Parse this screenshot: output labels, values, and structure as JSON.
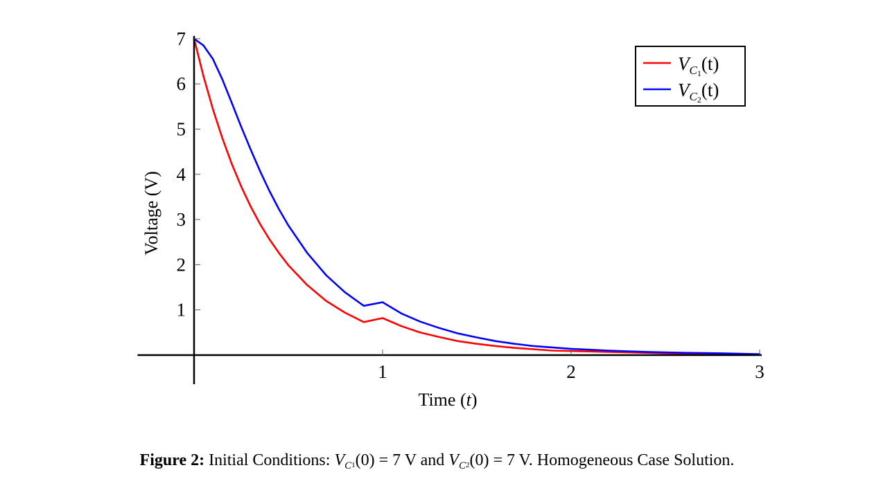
{
  "chart_data": {
    "type": "line",
    "xlabel_text": "Time (",
    "xlabel_var": "t",
    "xlabel_close": ")",
    "ylabel": "Voltage (V)",
    "xlim": [
      -0.3,
      3
    ],
    "ylim": [
      0,
      7
    ],
    "x_ticks": [
      1,
      2,
      3
    ],
    "y_ticks": [
      1,
      2,
      3,
      4,
      5,
      6,
      7
    ],
    "grid": false,
    "legend_position": "top-right",
    "series": [
      {
        "name": "V_C1(t)",
        "color": "#ff0000",
        "x": [
          0,
          0.05,
          0.1,
          0.15,
          0.2,
          0.25,
          0.3,
          0.35,
          0.4,
          0.45,
          0.5,
          0.6,
          0.7,
          0.8,
          0.9,
          1.0,
          1.1,
          1.2,
          1.3,
          1.4,
          1.5,
          1.6,
          1.7,
          1.8,
          1.9,
          2.0,
          2.2,
          2.4,
          2.6,
          2.8,
          3.0
        ],
        "values": [
          7.0,
          6.17,
          5.44,
          4.8,
          4.23,
          3.73,
          3.29,
          2.9,
          2.56,
          2.26,
          1.99,
          1.55,
          1.2,
          0.94,
          0.73,
          0.82,
          0.64,
          0.5,
          0.4,
          0.31,
          0.25,
          0.2,
          0.16,
          0.13,
          0.1,
          0.09,
          0.07,
          0.05,
          0.03,
          0.02,
          0.01
        ]
      },
      {
        "name": "V_C2(t)",
        "color": "#0000ff",
        "x": [
          0,
          0.05,
          0.1,
          0.15,
          0.2,
          0.25,
          0.3,
          0.35,
          0.4,
          0.45,
          0.5,
          0.6,
          0.7,
          0.8,
          0.9,
          1.0,
          1.1,
          1.2,
          1.3,
          1.4,
          1.5,
          1.6,
          1.7,
          1.8,
          1.9,
          2.0,
          2.2,
          2.4,
          2.6,
          2.8,
          3.0
        ],
        "values": [
          7.0,
          6.85,
          6.55,
          6.1,
          5.58,
          5.05,
          4.55,
          4.07,
          3.63,
          3.23,
          2.87,
          2.26,
          1.77,
          1.39,
          1.09,
          1.17,
          0.92,
          0.74,
          0.6,
          0.48,
          0.39,
          0.31,
          0.25,
          0.2,
          0.17,
          0.14,
          0.1,
          0.07,
          0.05,
          0.04,
          0.02
        ]
      }
    ]
  },
  "legend": [
    {
      "var": "V",
      "sub": "C",
      "subsub": "1",
      "arg": "(t)"
    },
    {
      "var": "V",
      "sub": "C",
      "subsub": "2",
      "arg": "(t)"
    }
  ],
  "caption": {
    "label": "Figure 2:",
    "text1": "Initial Conditions:",
    "v1_var": "V",
    "v1_sub": "C",
    "v1_subsub": "1",
    "v1_rest": "(0) = 7 V",
    "and": "and",
    "v2_var": "V",
    "v2_sub": "C",
    "v2_subsub": "2",
    "v2_rest": "(0) = 7 V.",
    "text2": "Homogeneous Case Solution."
  }
}
